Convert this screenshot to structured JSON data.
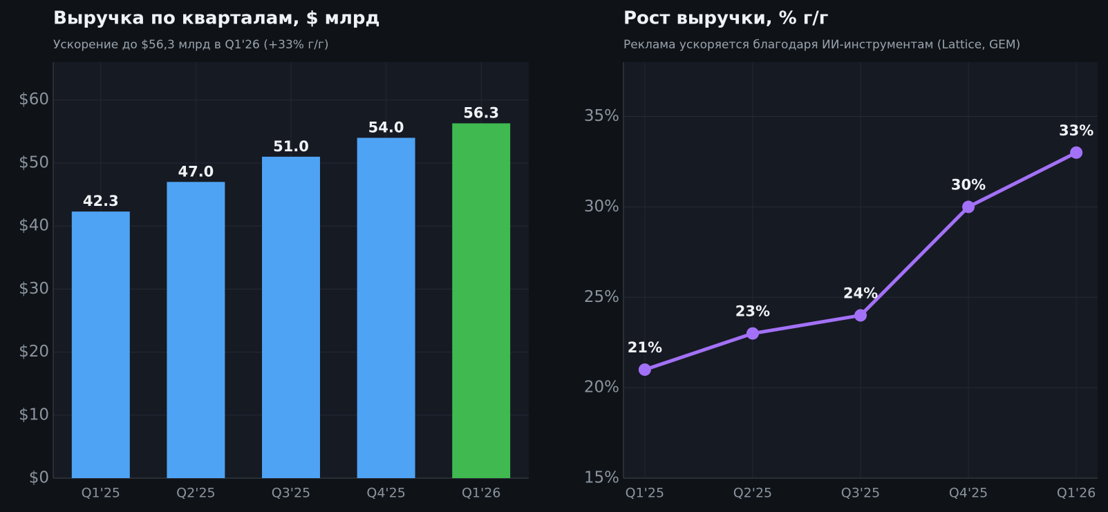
{
  "chart_data": [
    {
      "type": "bar",
      "title": "Выручка по кварталам, $ млрд",
      "subtitle": "Ускорение до $56,3 млрд в Q1'26 (+33% г/г)",
      "categories": [
        "Q1'25",
        "Q2'25",
        "Q3'25",
        "Q4'25",
        "Q1'26"
      ],
      "values": [
        42.3,
        47.0,
        51.0,
        54.0,
        56.3
      ],
      "value_labels": [
        "42.3",
        "47.0",
        "51.0",
        "54.0",
        "56.3"
      ],
      "colors": [
        "#4fa3f4",
        "#4fa3f4",
        "#4fa3f4",
        "#4fa3f4",
        "#3fb950"
      ],
      "ylim": [
        0,
        66
      ],
      "yticks": [
        {
          "value": 0,
          "label": "$0"
        },
        {
          "value": 10,
          "label": "$10"
        },
        {
          "value": 20,
          "label": "$20"
        },
        {
          "value": 30,
          "label": "$30"
        },
        {
          "value": 40,
          "label": "$40"
        },
        {
          "value": 50,
          "label": "$50"
        },
        {
          "value": 60,
          "label": "$60"
        }
      ],
      "grid": true
    },
    {
      "type": "line",
      "title": "Рост выручки, % г/г",
      "subtitle": "Реклама ускоряется благодаря ИИ-инструментам (Lattice, GEM)",
      "categories": [
        "Q1'25",
        "Q2'25",
        "Q3'25",
        "Q4'25",
        "Q1'26"
      ],
      "values": [
        21,
        23,
        24,
        30,
        33
      ],
      "value_labels": [
        "21%",
        "23%",
        "24%",
        "30%",
        "33%"
      ],
      "color": "#a371f7",
      "ylim": [
        15,
        38
      ],
      "yticks": [
        {
          "value": 15,
          "label": "15%"
        },
        {
          "value": 20,
          "label": "20%"
        },
        {
          "value": 25,
          "label": "25%"
        },
        {
          "value": 30,
          "label": "30%"
        },
        {
          "value": 35,
          "label": "35%"
        }
      ],
      "grid": true
    }
  ]
}
